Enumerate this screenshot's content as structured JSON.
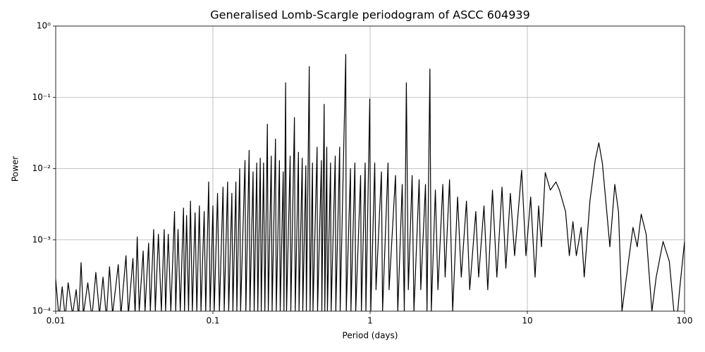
{
  "chart_data": {
    "type": "line",
    "title": "Generalised Lomb-Scargle periodogram of ASCC 604939",
    "x_label": "Period (days)",
    "y_label": "Power",
    "x_scale": "log",
    "y_scale": "log",
    "grid": true,
    "xlim": [
      0.01,
      100
    ],
    "ylim": [
      0.0001,
      1
    ],
    "xticks": [
      0.01,
      0.1,
      1,
      10,
      100
    ],
    "yticks": [
      {
        "value": 0.0001,
        "label": "10⁻⁴"
      },
      {
        "value": 0.001,
        "label": "10⁻³"
      },
      {
        "value": 0.01,
        "label": "10⁻²"
      },
      {
        "value": 0.1,
        "label": "10⁻¹"
      },
      {
        "value": 1,
        "label": "10⁰"
      }
    ],
    "color": "#000000",
    "x": [
      0.01,
      0.0105,
      0.011,
      0.0115,
      0.012,
      0.0128,
      0.0135,
      0.014,
      0.0145,
      0.015,
      0.016,
      0.017,
      0.018,
      0.019,
      0.02,
      0.021,
      0.022,
      0.023,
      0.025,
      0.026,
      0.028,
      0.029,
      0.031,
      0.032,
      0.033,
      0.034,
      0.036,
      0.037,
      0.039,
      0.04,
      0.042,
      0.043,
      0.045,
      0.047,
      0.049,
      0.05,
      0.052,
      0.054,
      0.057,
      0.058,
      0.06,
      0.062,
      0.065,
      0.066,
      0.068,
      0.07,
      0.072,
      0.074,
      0.077,
      0.079,
      0.082,
      0.084,
      0.088,
      0.09,
      0.094,
      0.096,
      0.1,
      0.102,
      0.107,
      0.11,
      0.116,
      0.118,
      0.124,
      0.126,
      0.132,
      0.134,
      0.14,
      0.142,
      0.148,
      0.15,
      0.16,
      0.162,
      0.17,
      0.172,
      0.18,
      0.183,
      0.19,
      0.193,
      0.2,
      0.203,
      0.21,
      0.214,
      0.222,
      0.225,
      0.235,
      0.238,
      0.25,
      0.253,
      0.265,
      0.268,
      0.28,
      0.283,
      0.29,
      0.294,
      0.31,
      0.313,
      0.33,
      0.334,
      0.35,
      0.353,
      0.37,
      0.373,
      0.39,
      0.393,
      0.41,
      0.415,
      0.43,
      0.433,
      0.46,
      0.463,
      0.49,
      0.493,
      0.51,
      0.515,
      0.53,
      0.535,
      0.56,
      0.565,
      0.6,
      0.605,
      0.64,
      0.645,
      0.7,
      0.705,
      0.75,
      0.755,
      0.8,
      0.81,
      0.87,
      0.88,
      0.93,
      0.94,
      0.995,
      1.01,
      1.07,
      1.09,
      1.18,
      1.2,
      1.3,
      1.32,
      1.45,
      1.5,
      1.6,
      1.65,
      1.7,
      1.75,
      1.85,
      1.9,
      2.05,
      2.1,
      2.25,
      2.3,
      2.4,
      2.45,
      2.6,
      2.7,
      2.9,
      3.0,
      3.2,
      3.35,
      3.6,
      3.8,
      4.1,
      4.3,
      4.7,
      4.9,
      5.3,
      5.6,
      6.0,
      6.4,
      6.9,
      7.3,
      7.8,
      8.3,
      9.2,
      9.8,
      10.5,
      11.2,
      11.8,
      12.3,
      13,
      14,
      15.2,
      16,
      17.5,
      18.5,
      19.5,
      20.5,
      22,
      23,
      25,
      27,
      28.5,
      30,
      32,
      33.5,
      36,
      38,
      40,
      44,
      47,
      50,
      53,
      57,
      62,
      66,
      73,
      80,
      88,
      93,
      100
    ],
    "values": [
      0.00028,
      8e-05,
      0.00022,
      8e-05,
      0.00025,
      9e-05,
      0.0002,
      8e-05,
      0.00048,
      9e-05,
      0.00025,
      8e-05,
      0.00035,
      9e-05,
      0.0003,
      8e-05,
      0.00042,
      9e-05,
      0.00045,
      9e-05,
      0.0006,
      9e-05,
      0.00055,
      9e-05,
      0.0011,
      0.0001,
      0.0007,
      0.0001,
      0.0009,
      0.0001,
      0.0014,
      0.0001,
      0.0012,
      0.0001,
      0.0014,
      0.0001,
      0.0012,
      0.0001,
      0.0025,
      0.0001,
      0.0014,
      0.0001,
      0.0028,
      0.0001,
      0.0022,
      0.0001,
      0.0035,
      0.0001,
      0.0024,
      0.0001,
      0.003,
      0.0001,
      0.0025,
      0.0001,
      0.0065,
      0.0001,
      0.003,
      0.0001,
      0.0045,
      0.0001,
      0.0055,
      0.0001,
      0.0065,
      0.0001,
      0.0045,
      0.0001,
      0.0065,
      0.0001,
      0.01,
      0.0001,
      0.013,
      0.0001,
      0.018,
      0.0001,
      0.009,
      0.0001,
      0.012,
      0.0001,
      0.014,
      0.0001,
      0.012,
      0.0001,
      0.042,
      0.0001,
      0.015,
      0.0001,
      0.026,
      0.0001,
      0.013,
      0.0001,
      0.009,
      0.0001,
      0.16,
      0.0001,
      0.015,
      0.0001,
      0.052,
      0.0001,
      0.017,
      0.0001,
      0.014,
      0.0001,
      0.011,
      0.0001,
      0.27,
      0.0001,
      0.012,
      0.0001,
      0.02,
      0.0001,
      0.013,
      0.0001,
      0.08,
      0.0001,
      0.02,
      0.0001,
      0.012,
      0.0001,
      0.015,
      0.0001,
      0.02,
      0.0001,
      0.4,
      0.0001,
      0.01,
      0.0001,
      0.012,
      0.0001,
      0.008,
      0.0001,
      0.012,
      0.0001,
      0.095,
      0.0001,
      0.012,
      0.0002,
      0.009,
      0.0001,
      0.012,
      0.0002,
      0.008,
      0.0001,
      0.006,
      0.0001,
      0.16,
      0.0002,
      0.008,
      0.0001,
      0.007,
      0.0002,
      0.006,
      0.0001,
      0.25,
      0.0001,
      0.005,
      0.0002,
      0.006,
      0.0003,
      0.007,
      0.0001,
      0.004,
      0.0003,
      0.0035,
      0.0002,
      0.0025,
      0.0003,
      0.003,
      0.0002,
      0.005,
      0.0003,
      0.0055,
      0.0004,
      0.0045,
      0.0006,
      0.0095,
      0.0006,
      0.004,
      0.0003,
      0.003,
      0.0008,
      0.0088,
      0.005,
      0.0065,
      0.005,
      0.0025,
      0.0006,
      0.0018,
      0.0006,
      0.0015,
      0.0003,
      0.0035,
      0.013,
      0.023,
      0.012,
      0.0025,
      0.0008,
      0.006,
      0.0025,
      0.0001,
      0.0005,
      0.0015,
      0.0008,
      0.0023,
      0.0012,
      0.0001,
      0.0003,
      0.00095,
      0.0005,
      5e-05,
      0.0002,
      0.00095
    ]
  }
}
